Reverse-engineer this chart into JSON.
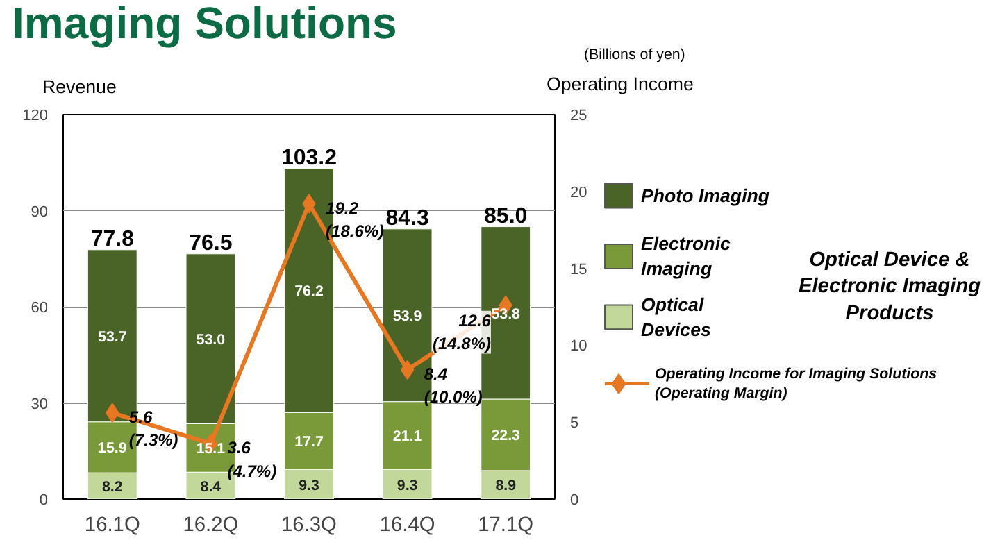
{
  "chart_data": {
    "type": "bar",
    "title": "Imaging Solutions",
    "ylabel": "Revenue",
    "y2label": "Operating Income",
    "categories": [
      "16.1Q",
      "16.2Q",
      "16.3Q",
      "16.4Q",
      "17.1Q"
    ],
    "stacked": true,
    "series": [
      {
        "name": "Optical Devices",
        "color": "#c2d89a",
        "values": [
          8.2,
          8.4,
          9.3,
          9.3,
          8.9
        ]
      },
      {
        "name": "Electronic Imaging",
        "color": "#7a9a3a",
        "values": [
          15.9,
          15.1,
          17.7,
          21.1,
          22.3
        ]
      },
      {
        "name": "Photo Imaging",
        "color": "#4a6428",
        "values": [
          53.7,
          53.0,
          76.2,
          53.9,
          53.8
        ],
        "value_labels": [
          "53.7",
          "53.0",
          "76.2",
          "53.9",
          "53.8"
        ]
      },
      {
        "name": "Operating Income for Imaging Solutions (Operating Margin)",
        "type": "line",
        "axis": "y2",
        "color": "#e87722",
        "marker": "diamond",
        "values": [
          5.6,
          3.6,
          19.2,
          8.4,
          12.6
        ],
        "value_labels": [
          "5.6\n(7.3%)",
          "3.6\n(4.7%)",
          "19.2\n(18.6%)",
          "8.4\n(10.0%)",
          "12.6\n(14.8%)"
        ]
      }
    ],
    "data_labels": true,
    "totals": [
      "77.8",
      "76.5",
      "103.2",
      "84.3",
      "85.0"
    ],
    "ylim": [
      0,
      120
    ],
    "yticks": [
      0,
      30,
      60,
      90,
      120
    ],
    "y2lim": [
      0,
      25
    ],
    "y2ticks": [
      0,
      5,
      10,
      15,
      20,
      25
    ],
    "grid": "y",
    "legend": "right",
    "annotations": [
      "(Billions of yen)",
      "Optical Device & Electronic Imaging Products"
    ]
  }
}
